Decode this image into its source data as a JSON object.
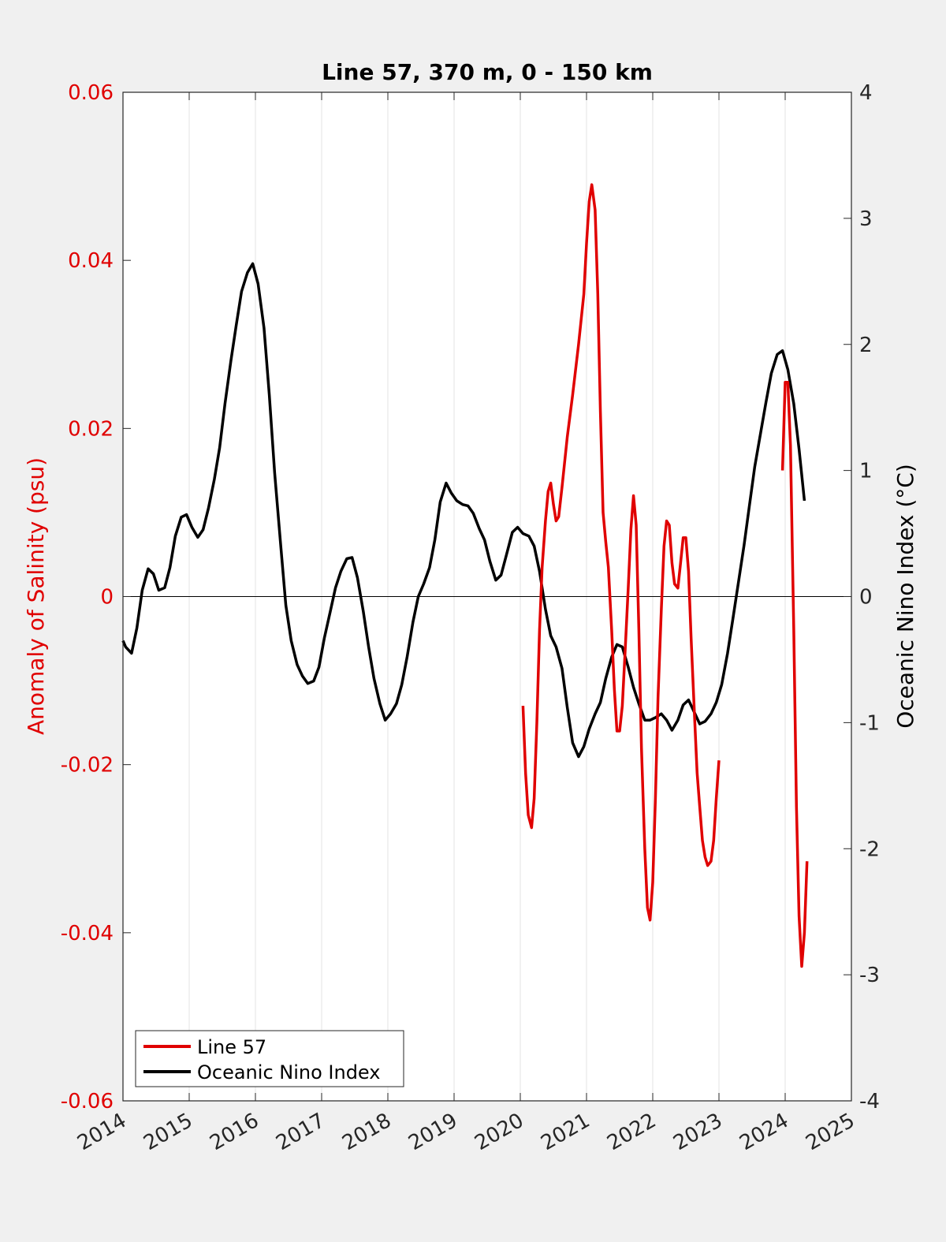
{
  "chart_data": {
    "type": "line",
    "title": "Line 57, 370 m, 0 - 150 km",
    "xlabel": "",
    "ylabel": "Anomaly of Salinity (psu)",
    "ylabel_right": "Oceanic Nino Index (°C)",
    "xlim": [
      2014,
      2025
    ],
    "ylim": [
      -0.06,
      0.06
    ],
    "ylim_right": [
      -4,
      4
    ],
    "x_ticks": [
      "2014",
      "2015",
      "2016",
      "2017",
      "2018",
      "2019",
      "2020",
      "2021",
      "2022",
      "2023",
      "2024",
      "2025"
    ],
    "y_ticks": [
      "-0.06",
      "-0.04",
      "-0.02",
      "0",
      "0.02",
      "0.04",
      "0.06"
    ],
    "y_ticks_right": [
      "-4",
      "-3",
      "-2",
      "-1",
      "0",
      "1",
      "2",
      "3",
      "4"
    ],
    "grid": "vertical",
    "legend_position": "bottom-left",
    "colors": {
      "left_axis": "#e00000",
      "line57": "#e00000",
      "oni": "#000000"
    },
    "series": [
      {
        "name": "Line 57",
        "axis": "left",
        "segments": [
          [
            [
              2020.04,
              -0.013
            ],
            [
              2020.08,
              -0.021
            ],
            [
              2020.12,
              -0.026
            ],
            [
              2020.17,
              -0.0275
            ],
            [
              2020.21,
              -0.024
            ],
            [
              2020.25,
              -0.015
            ],
            [
              2020.29,
              -0.004
            ],
            [
              2020.33,
              0.0035
            ],
            [
              2020.38,
              0.009
            ],
            [
              2020.42,
              0.0125
            ],
            [
              2020.46,
              0.0135
            ],
            [
              2020.5,
              0.011
            ],
            [
              2020.54,
              0.009
            ],
            [
              2020.58,
              0.0095
            ],
            [
              2020.63,
              0.013
            ],
            [
              2020.71,
              0.019
            ],
            [
              2020.79,
              0.024
            ],
            [
              2020.88,
              0.03
            ],
            [
              2020.96,
              0.036
            ],
            [
              2021.0,
              0.042
            ],
            [
              2021.04,
              0.047
            ],
            [
              2021.08,
              0.049
            ],
            [
              2021.13,
              0.046
            ],
            [
              2021.17,
              0.036
            ],
            [
              2021.21,
              0.022
            ],
            [
              2021.25,
              0.01
            ],
            [
              2021.29,
              0.0065
            ],
            [
              2021.33,
              0.0035
            ],
            [
              2021.38,
              -0.004
            ],
            [
              2021.42,
              -0.011
            ],
            [
              2021.46,
              -0.016
            ],
            [
              2021.5,
              -0.016
            ],
            [
              2021.54,
              -0.013
            ],
            [
              2021.58,
              -0.007
            ],
            [
              2021.63,
              0.001
            ],
            [
              2021.67,
              0.008
            ],
            [
              2021.71,
              0.012
            ],
            [
              2021.75,
              0.0085
            ],
            [
              2021.79,
              -0.004
            ],
            [
              2021.83,
              -0.018
            ],
            [
              2021.88,
              -0.03
            ],
            [
              2021.92,
              -0.037
            ],
            [
              2021.96,
              -0.0385
            ],
            [
              2022.0,
              -0.034
            ],
            [
              2022.04,
              -0.024
            ],
            [
              2022.08,
              -0.012
            ],
            [
              2022.13,
              -0.0015
            ],
            [
              2022.17,
              0.006
            ],
            [
              2022.21,
              0.009
            ],
            [
              2022.25,
              0.0085
            ],
            [
              2022.29,
              0.004
            ],
            [
              2022.33,
              0.0015
            ],
            [
              2022.38,
              0.001
            ],
            [
              2022.42,
              0.004
            ],
            [
              2022.46,
              0.007
            ],
            [
              2022.5,
              0.007
            ],
            [
              2022.54,
              0.003
            ],
            [
              2022.58,
              -0.005
            ],
            [
              2022.63,
              -0.014
            ],
            [
              2022.67,
              -0.021
            ],
            [
              2022.71,
              -0.025
            ],
            [
              2022.75,
              -0.029
            ],
            [
              2022.79,
              -0.031
            ],
            [
              2022.83,
              -0.032
            ],
            [
              2022.88,
              -0.0315
            ],
            [
              2022.92,
              -0.029
            ],
            [
              2022.96,
              -0.024
            ],
            [
              2023.0,
              -0.0195
            ]
          ],
          [
            [
              2023.96,
              0.015
            ],
            [
              2024.0,
              0.0255
            ],
            [
              2024.04,
              0.0255
            ],
            [
              2024.08,
              0.018
            ],
            [
              2024.13,
              -0.004
            ],
            [
              2024.17,
              -0.025
            ],
            [
              2024.21,
              -0.038
            ],
            [
              2024.25,
              -0.044
            ],
            [
              2024.29,
              -0.04
            ],
            [
              2024.33,
              -0.0315
            ]
          ]
        ]
      },
      {
        "name": "Oceanic Nino Index",
        "axis": "right",
        "points": [
          [
            2014.0,
            -0.35
          ],
          [
            2014.04,
            -0.4
          ],
          [
            2014.13,
            -0.45
          ],
          [
            2014.21,
            -0.25
          ],
          [
            2014.29,
            0.05
          ],
          [
            2014.38,
            0.22
          ],
          [
            2014.46,
            0.18
          ],
          [
            2014.54,
            0.05
          ],
          [
            2014.63,
            0.07
          ],
          [
            2014.71,
            0.23
          ],
          [
            2014.79,
            0.48
          ],
          [
            2014.88,
            0.63
          ],
          [
            2014.96,
            0.65
          ],
          [
            2015.04,
            0.55
          ],
          [
            2015.13,
            0.47
          ],
          [
            2015.21,
            0.53
          ],
          [
            2015.29,
            0.7
          ],
          [
            2015.38,
            0.93
          ],
          [
            2015.46,
            1.18
          ],
          [
            2015.54,
            1.53
          ],
          [
            2015.63,
            1.87
          ],
          [
            2015.71,
            2.15
          ],
          [
            2015.79,
            2.42
          ],
          [
            2015.88,
            2.57
          ],
          [
            2015.96,
            2.64
          ],
          [
            2016.04,
            2.48
          ],
          [
            2016.13,
            2.13
          ],
          [
            2016.21,
            1.6
          ],
          [
            2016.29,
            0.98
          ],
          [
            2016.38,
            0.42
          ],
          [
            2016.46,
            -0.07
          ],
          [
            2016.54,
            -0.35
          ],
          [
            2016.63,
            -0.54
          ],
          [
            2016.71,
            -0.63
          ],
          [
            2016.79,
            -0.69
          ],
          [
            2016.88,
            -0.67
          ],
          [
            2016.96,
            -0.56
          ],
          [
            2017.04,
            -0.33
          ],
          [
            2017.13,
            -0.12
          ],
          [
            2017.21,
            0.07
          ],
          [
            2017.29,
            0.2
          ],
          [
            2017.38,
            0.3
          ],
          [
            2017.46,
            0.31
          ],
          [
            2017.54,
            0.15
          ],
          [
            2017.63,
            -0.12
          ],
          [
            2017.71,
            -0.4
          ],
          [
            2017.79,
            -0.65
          ],
          [
            2017.88,
            -0.85
          ],
          [
            2017.96,
            -0.98
          ],
          [
            2018.04,
            -0.93
          ],
          [
            2018.13,
            -0.85
          ],
          [
            2018.21,
            -0.7
          ],
          [
            2018.29,
            -0.48
          ],
          [
            2018.38,
            -0.2
          ],
          [
            2018.46,
            0.0
          ],
          [
            2018.54,
            0.1
          ],
          [
            2018.63,
            0.23
          ],
          [
            2018.71,
            0.45
          ],
          [
            2018.79,
            0.75
          ],
          [
            2018.88,
            0.9
          ],
          [
            2018.96,
            0.82
          ],
          [
            2019.04,
            0.76
          ],
          [
            2019.13,
            0.73
          ],
          [
            2019.21,
            0.72
          ],
          [
            2019.29,
            0.66
          ],
          [
            2019.38,
            0.54
          ],
          [
            2019.46,
            0.45
          ],
          [
            2019.54,
            0.28
          ],
          [
            2019.63,
            0.13
          ],
          [
            2019.71,
            0.17
          ],
          [
            2019.79,
            0.33
          ],
          [
            2019.88,
            0.51
          ],
          [
            2019.96,
            0.55
          ],
          [
            2020.04,
            0.5
          ],
          [
            2020.13,
            0.48
          ],
          [
            2020.21,
            0.4
          ],
          [
            2020.29,
            0.2
          ],
          [
            2020.38,
            -0.1
          ],
          [
            2020.46,
            -0.31
          ],
          [
            2020.54,
            -0.4
          ],
          [
            2020.63,
            -0.57
          ],
          [
            2020.71,
            -0.88
          ],
          [
            2020.79,
            -1.16
          ],
          [
            2020.88,
            -1.27
          ],
          [
            2020.96,
            -1.19
          ],
          [
            2021.04,
            -1.05
          ],
          [
            2021.13,
            -0.93
          ],
          [
            2021.21,
            -0.84
          ],
          [
            2021.29,
            -0.65
          ],
          [
            2021.38,
            -0.48
          ],
          [
            2021.46,
            -0.38
          ],
          [
            2021.54,
            -0.4
          ],
          [
            2021.63,
            -0.56
          ],
          [
            2021.71,
            -0.72
          ],
          [
            2021.79,
            -0.85
          ],
          [
            2021.88,
            -0.98
          ],
          [
            2021.96,
            -0.98
          ],
          [
            2022.04,
            -0.96
          ],
          [
            2022.13,
            -0.93
          ],
          [
            2022.21,
            -0.98
          ],
          [
            2022.29,
            -1.06
          ],
          [
            2022.38,
            -0.98
          ],
          [
            2022.46,
            -0.86
          ],
          [
            2022.54,
            -0.82
          ],
          [
            2022.63,
            -0.92
          ],
          [
            2022.71,
            -1.01
          ],
          [
            2022.79,
            -0.99
          ],
          [
            2022.88,
            -0.93
          ],
          [
            2022.96,
            -0.84
          ],
          [
            2023.04,
            -0.7
          ],
          [
            2023.13,
            -0.45
          ],
          [
            2023.21,
            -0.18
          ],
          [
            2023.29,
            0.1
          ],
          [
            2023.38,
            0.41
          ],
          [
            2023.46,
            0.72
          ],
          [
            2023.54,
            1.03
          ],
          [
            2023.63,
            1.3
          ],
          [
            2023.71,
            1.54
          ],
          [
            2023.79,
            1.77
          ],
          [
            2023.88,
            1.92
          ],
          [
            2023.96,
            1.95
          ],
          [
            2024.04,
            1.8
          ],
          [
            2024.13,
            1.53
          ],
          [
            2024.21,
            1.17
          ],
          [
            2024.29,
            0.76
          ]
        ]
      }
    ]
  }
}
